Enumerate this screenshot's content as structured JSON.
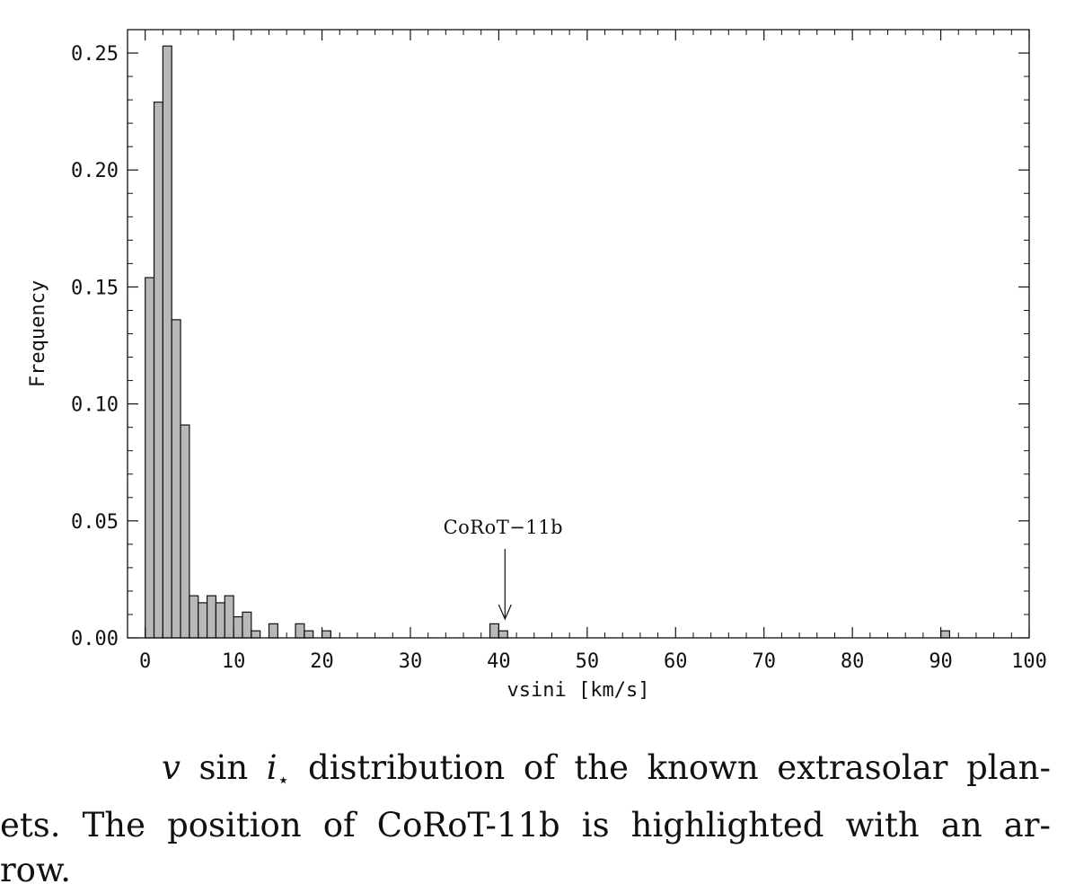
{
  "chart_data": {
    "type": "bar",
    "subtype": "histogram",
    "xlabel": "vsini [km/s]",
    "ylabel": "Frequency",
    "xlim": [
      -2,
      100
    ],
    "ylim": [
      0,
      0.26
    ],
    "x_ticks": [
      "0",
      "10",
      "20",
      "30",
      "40",
      "50",
      "60",
      "70",
      "80",
      "90",
      "100"
    ],
    "y_ticks": [
      "0.00",
      "0.05",
      "0.10",
      "0.15",
      "0.20",
      "0.25"
    ],
    "bin_width": 1,
    "bar_color": "#b8b8b8",
    "bins": [
      {
        "x0": 0,
        "value": 0.154
      },
      {
        "x0": 1,
        "value": 0.229
      },
      {
        "x0": 2,
        "value": 0.253
      },
      {
        "x0": 3,
        "value": 0.136
      },
      {
        "x0": 4,
        "value": 0.091
      },
      {
        "x0": 5,
        "value": 0.018
      },
      {
        "x0": 6,
        "value": 0.015
      },
      {
        "x0": 7,
        "value": 0.018
      },
      {
        "x0": 8,
        "value": 0.015
      },
      {
        "x0": 9,
        "value": 0.018
      },
      {
        "x0": 10,
        "value": 0.009
      },
      {
        "x0": 11,
        "value": 0.011
      },
      {
        "x0": 12,
        "value": 0.003
      },
      {
        "x0": 13,
        "value": 0
      },
      {
        "x0": 14,
        "value": 0.006
      },
      {
        "x0": 15,
        "value": 0
      },
      {
        "x0": 16,
        "value": 0
      },
      {
        "x0": 17,
        "value": 0.006
      },
      {
        "x0": 18,
        "value": 0.003
      },
      {
        "x0": 19,
        "value": 0
      },
      {
        "x0": 20,
        "value": 0.003
      },
      {
        "x0": 39,
        "value": 0.006
      },
      {
        "x0": 40,
        "value": 0.003
      },
      {
        "x0": 90,
        "value": 0.003
      }
    ],
    "annotations": [
      {
        "text": "CoRoT−11b",
        "x": 40.7,
        "type": "arrow"
      }
    ],
    "grid": false
  },
  "caption": {
    "math_v": "v",
    "math_sin": "sin",
    "math_i": "i",
    "math_star": "⋆",
    "line1": "distribution of the known extrasolar plan-",
    "line2": "ets. The position of CoRoT-11b is highlighted with an ar-",
    "line3": "row."
  }
}
